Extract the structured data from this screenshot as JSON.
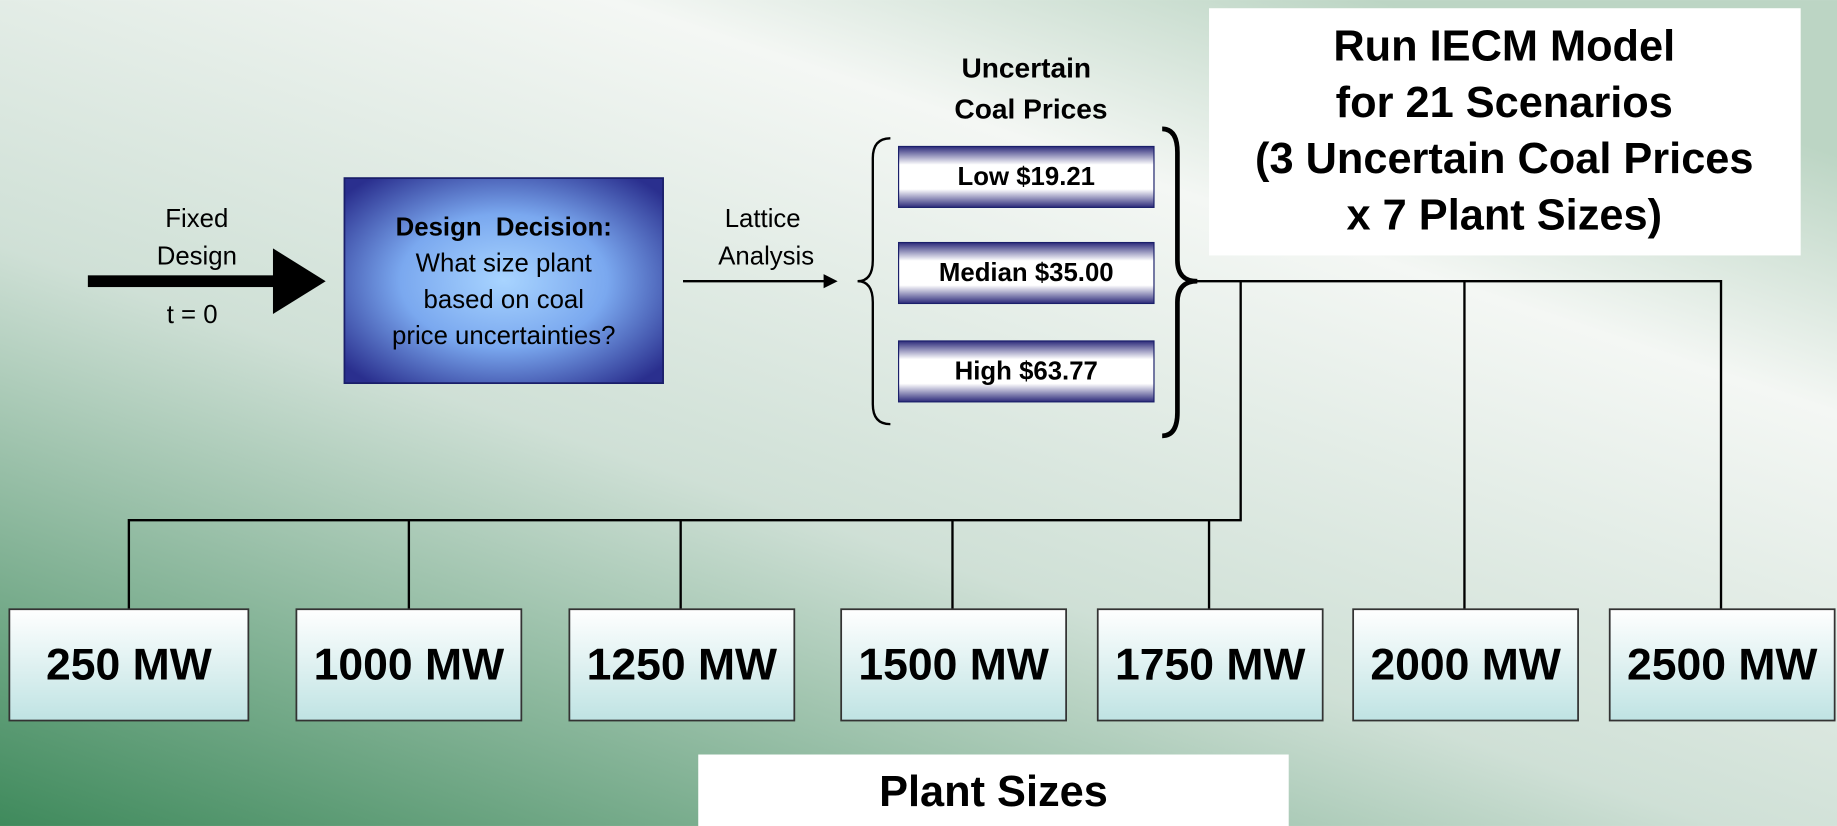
{
  "fixed_design": {
    "lines": [
      "Fixed",
      "Design"
    ],
    "time": "t = 0"
  },
  "design_decision": {
    "lines": [
      "Design  Decision:",
      "What size plant",
      "based on coal",
      "price uncertainties?"
    ]
  },
  "lattice": {
    "lines": [
      "Lattice",
      "Analysis"
    ]
  },
  "coal_prices": {
    "title_lines": [
      "Uncertain",
      "Coal Prices"
    ],
    "items": [
      "Low $19.21",
      "Median $35.00",
      "High $63.77"
    ]
  },
  "run_box": {
    "lines": [
      "Run IECM Model",
      "for 21 Scenarios",
      "(3 Uncertain Coal Prices",
      "x 7 Plant Sizes)"
    ]
  },
  "plant_sizes": {
    "items": [
      "250 MW",
      "1000 MW",
      "1250 MW",
      "1500 MW",
      "1750 MW",
      "2000 MW",
      "2500 MW"
    ],
    "label": "Plant Sizes"
  }
}
